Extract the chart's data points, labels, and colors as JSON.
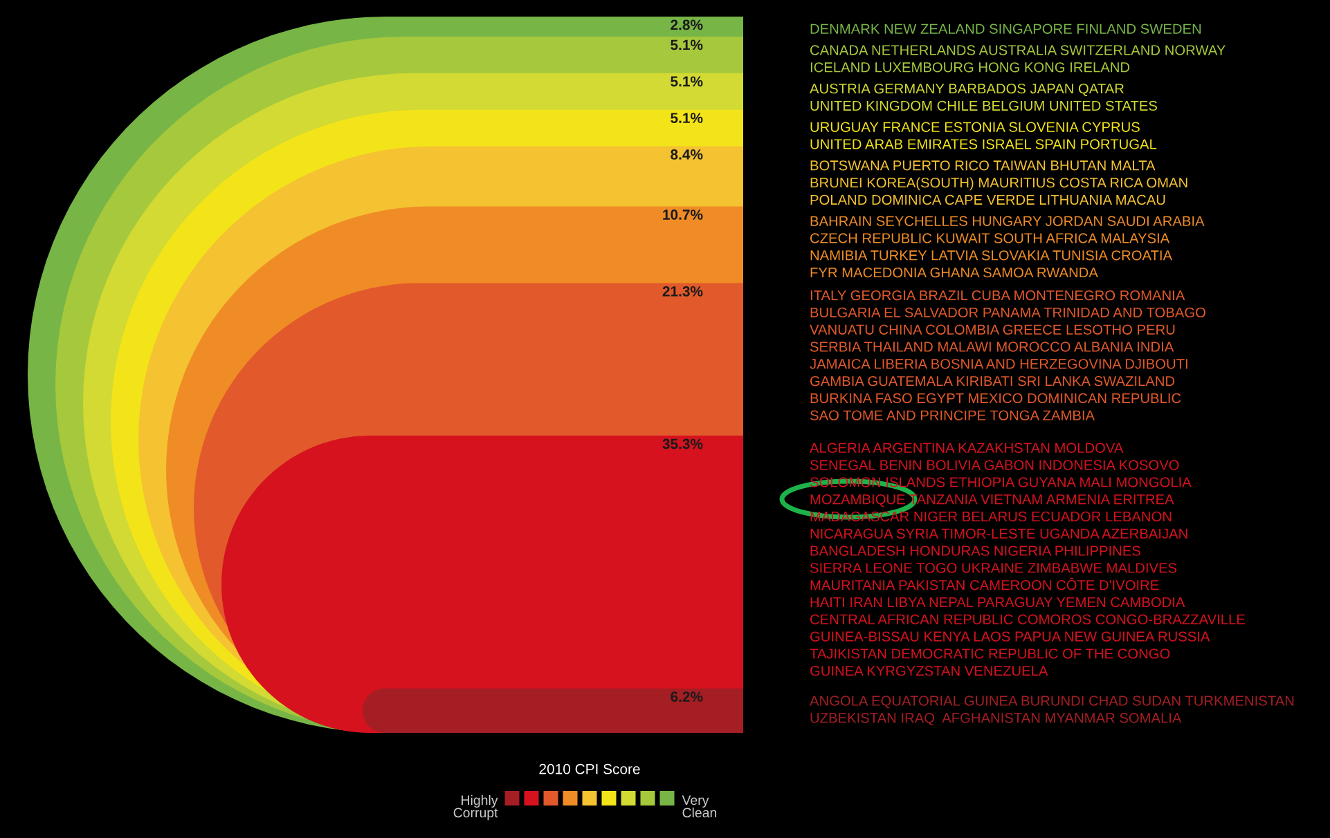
{
  "chart_data": {
    "type": "other",
    "categories": [
      null,
      null,
      null,
      null,
      null,
      null,
      null,
      null,
      null
    ],
    "values": [
      2.8,
      5.1,
      5.1,
      5.1,
      8.4,
      10.7,
      21.3,
      35.3,
      6.2
    ],
    "colors": [
      "#77b547",
      "#a6c83c",
      "#d2da33",
      "#f3e41a",
      "#f5c232",
      "#ef8c26",
      "#e2592b",
      "#d5121e",
      "#a41e24"
    ],
    "value_labels": [
      "2.8%",
      "5.1%",
      "5.1%",
      "5.1%",
      "8.4%",
      "10.7%",
      "21.3%",
      "35.3%",
      "6.2%"
    ],
    "legend_title": "2010 CPI Score",
    "annotations": [
      "DENMARK NEW ZEALAND SINGAPORE FINLAND SWEDEN",
      "CANADA NETHERLANDS AUSTRALIA SWITZERLAND NORWAY\nICELAND LUXEMBOURG HONG KONG IRELAND",
      "AUSTRIA GERMANY BARBADOS JAPAN QATAR\nUNITED KINGDOM CHILE BELGIUM UNITED STATES",
      "URUGUAY FRANCE ESTONIA SLOVENIA CYPRUS\nUNITED ARAB EMIRATES ISRAEL SPAIN PORTUGAL",
      "BOTSWANA PUERTO RICO TAIWAN BHUTAN MALTA\nBRUNEI KOREA(SOUTH) MAURITIUS COSTA RICA OMAN\nPOLAND DOMINICA CAPE VERDE LITHUANIA MACAU",
      "BAHRAIN SEYCHELLES HUNGARY JORDAN SAUDI ARABIA\nCZECH REPUBLIC KUWAIT SOUTH AFRICA MALAYSIA\nNAMIBIA TURKEY LATVIA SLOVAKIA TUNISIA CROATIA\nFYR MACEDONIA GHANA SAMOA RWANDA",
      "ITALY GEORGIA BRAZIL CUBA MONTENEGRO ROMANIA\nBULGARIA EL SALVADOR PANAMA TRINIDAD AND TOBAGO\nVANUATU CHINA COLOMBIA GREECE LESOTHO PERU\nSERBIA THAILAND MALAWI MOROCCO ALBANIA INDIA\nJAMAICA LIBERIA BOSNIA AND HERZEGOVINA DJIBOUTI\nGAMBIA GUATEMALA KIRIBATI SRI LANKA SWAZILAND\nBURKINA FASO EGYPT MEXICO DOMINICAN REPUBLIC\nSAO TOME AND PRINCIPE TONGA ZAMBIA",
      "ALGERIA ARGENTINA KAZAKHSTAN MOLDOVA\nSENEGAL BENIN BOLIVIA GABON INDONESIA KOSOVO\nSOLOMON ISLANDS ETHIOPIA GUYANA MALI MONGOLIA\nMOZAMBIQUE TANZANIA VIETNAM ARMENIA ERITREA\nMADAGASCAR NIGER BELARUS ECUADOR LEBANON\nNICARAGUA SYRIA TIMOR-LESTE UGANDA AZERBAIJAN\nBANGLADESH HONDURAS NIGERIA PHILIPPINES\nSIERRA LEONE TOGO UKRAINE ZIMBABWE MALDIVES\nMAURITANIA PAKISTAN CAMEROON CÔTE D'IVOIRE\nHAITI IRAN LIBYA NEPAL PARAGUAY YEMEN CAMBODIA\nCENTRAL AFRICAN REPUBLIC COMOROS CONGO-BRAZZAVILLE\nGUINEA-BISSAU KENYA LAOS PAPUA NEW GUINEA RUSSIA\nTAJIKISTAN DEMOCRATIC REPUBLIC OF THE CONGO\nGUINEA KYRGYZSTAN VENEZUELA",
      "ANGOLA EQUATORIAL GUINEA BURUNDI CHAD SUDAN TURKMENISTAN\nUZBEKISTAN IRAQ  AFGHANISTAN MYANMAR SOMALIA",
      "Highly\nCorrupt",
      "Very\nClean"
    ]
  }
}
